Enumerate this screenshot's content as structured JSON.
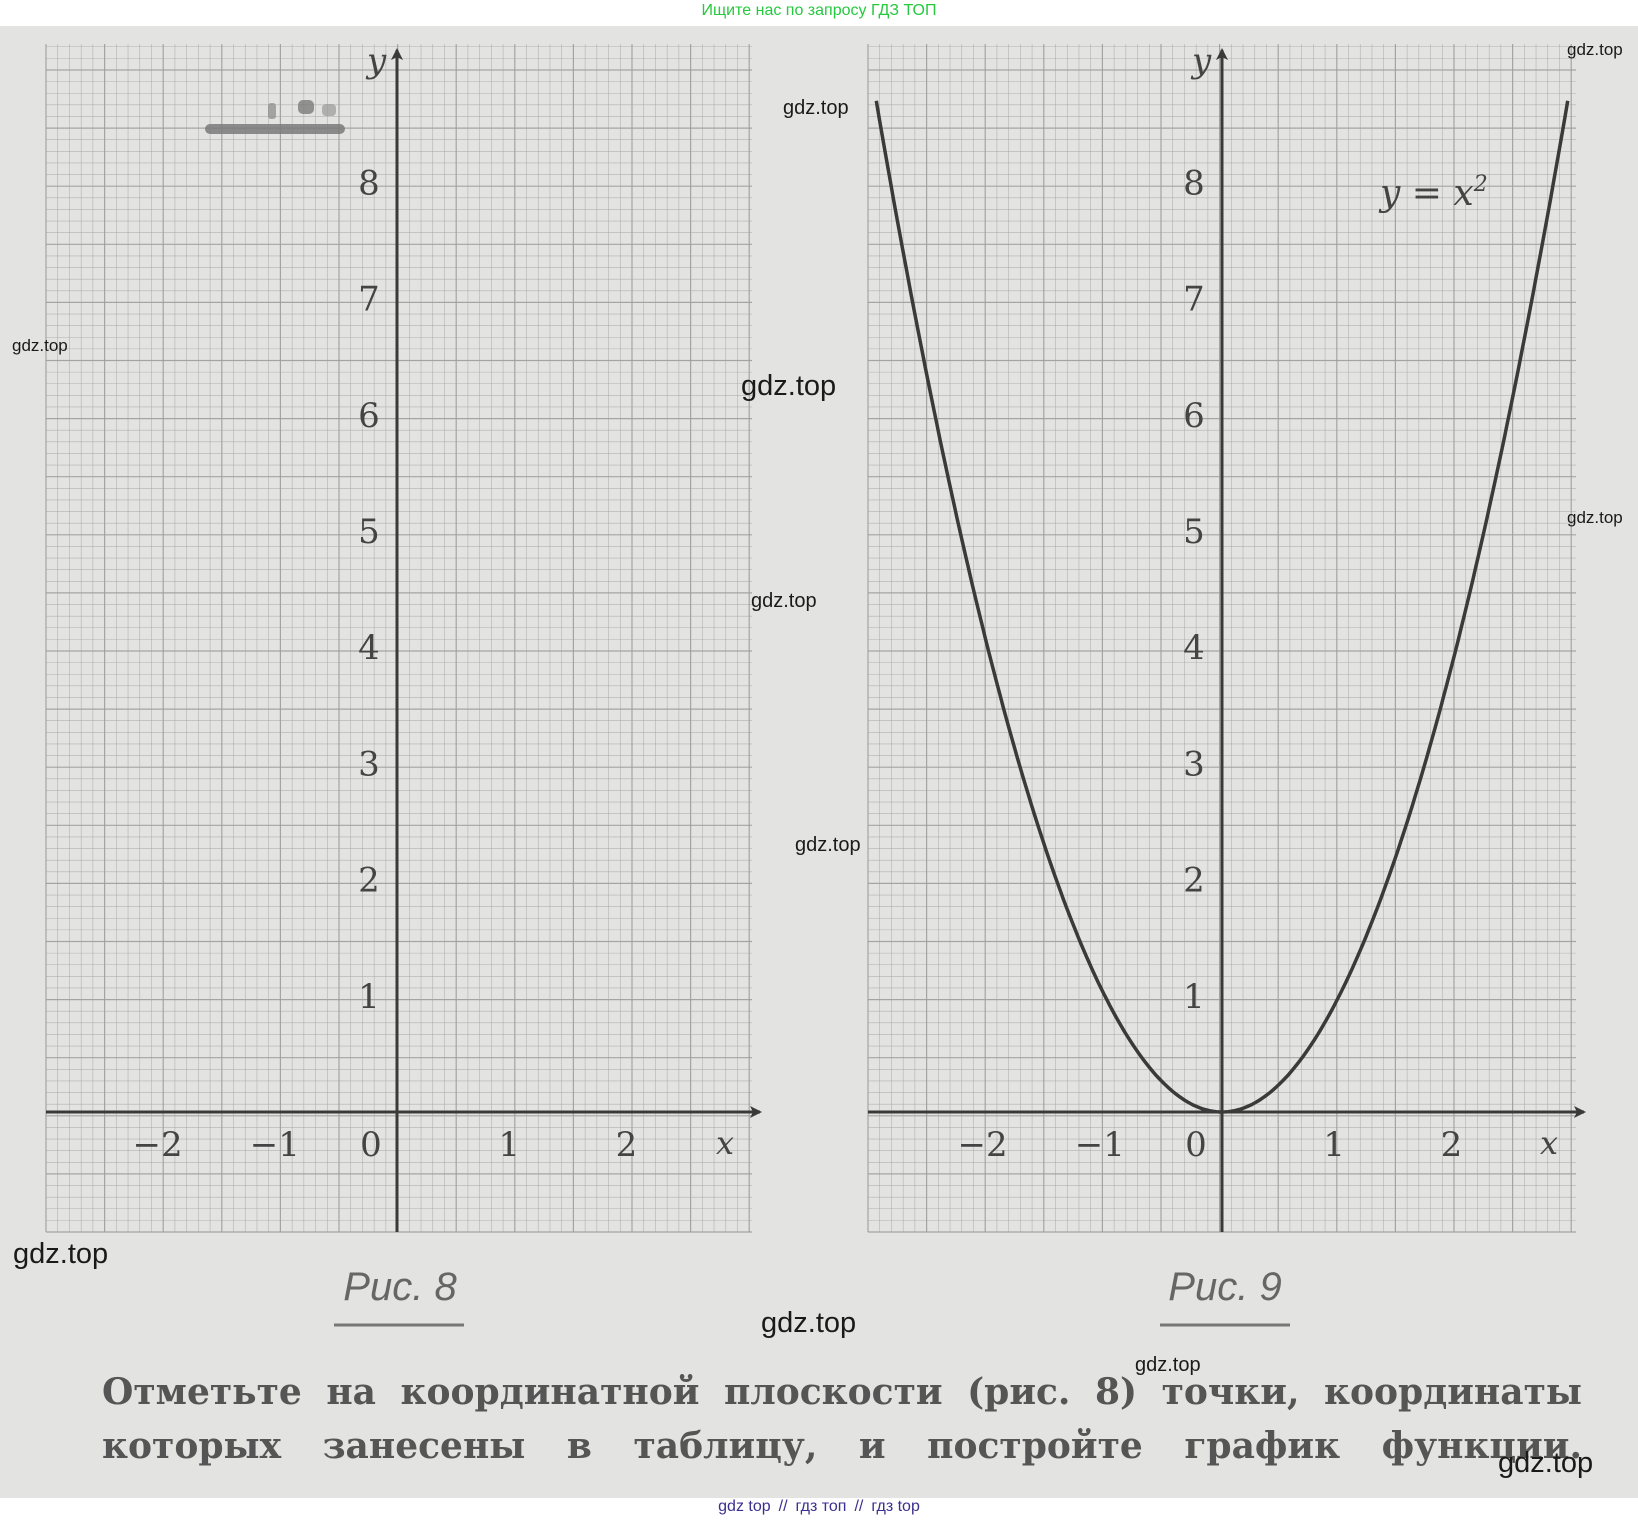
{
  "header_note": "Ищите нас по запросу ГДЗ ТОП",
  "footer_links": [
    "gdz top",
    "гдз топ",
    "гдз top"
  ],
  "footer_sep": "//",
  "watermarks": [
    "gdz.top",
    "gdz.top",
    "gdz.top",
    "gdz.top",
    "gdz.top",
    "gdz.top",
    "gdz.top",
    "gdz.top",
    "gdz.top",
    "gdz.top",
    "gdz.top"
  ],
  "task_text": "Отметьте на координатной плоскости (рис. 8) точки, координаты которых занесены в таблицу, и постройте график функции.",
  "colors": {
    "grid": "#9e9e9c",
    "axis": "#3a3a3a",
    "curve": "#3a3a3a",
    "paper": "#e3e3e1"
  },
  "chart_data": [
    {
      "type": "line",
      "caption": "Рис. 8",
      "xlabel": "x",
      "ylabel": "y",
      "x_ticks": [
        "−2",
        "−1",
        "0",
        "1",
        "2"
      ],
      "y_ticks": [
        "1",
        "2",
        "3",
        "4",
        "5",
        "6",
        "7",
        "8"
      ],
      "xlim": [
        -3,
        3
      ],
      "ylim": [
        -1,
        9
      ],
      "grid": true,
      "series": []
    },
    {
      "type": "line",
      "caption": "Рис. 9",
      "xlabel": "x",
      "ylabel": "y",
      "x_ticks": [
        "−2",
        "−1",
        "0",
        "1",
        "2"
      ],
      "y_ticks": [
        "1",
        "2",
        "3",
        "4",
        "5",
        "6",
        "7",
        "8"
      ],
      "xlim": [
        -3,
        3
      ],
      "ylim": [
        -1,
        9
      ],
      "grid": true,
      "annotation": {
        "text": "y = x",
        "superscript": "2"
      },
      "series": [
        {
          "x": [
            -2.95,
            -2.75,
            -2.5,
            -2.25,
            -2,
            -1.75,
            -1.5,
            -1.25,
            -1,
            -0.75,
            -0.5,
            -0.25,
            0,
            0.25,
            0.5,
            0.75,
            1,
            1.25,
            1.5,
            1.75,
            2,
            2.25,
            2.5,
            2.75,
            2.95
          ],
          "y": [
            8.7,
            7.56,
            6.25,
            5.06,
            4,
            3.06,
            2.25,
            1.56,
            1,
            0.56,
            0.25,
            0.06,
            0,
            0.06,
            0.25,
            0.56,
            1,
            1.56,
            2.25,
            3.06,
            4,
            5.06,
            6.25,
            7.56,
            8.7
          ]
        }
      ]
    }
  ]
}
